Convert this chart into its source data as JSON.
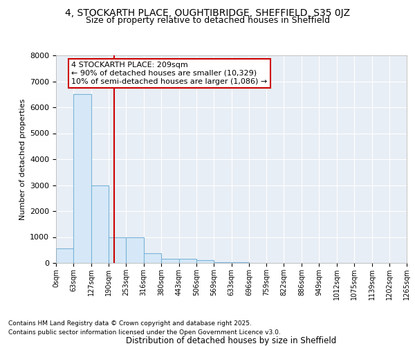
{
  "title": "4, STOCKARTH PLACE, OUGHTIBRIDGE, SHEFFIELD, S35 0JZ",
  "subtitle": "Size of property relative to detached houses in Sheffield",
  "xlabel": "Distribution of detached houses by size in Sheffield",
  "ylabel": "Number of detached properties",
  "bin_edges": [
    0,
    63,
    127,
    190,
    253,
    316,
    380,
    443,
    506,
    569,
    633,
    696,
    759,
    822,
    886,
    949,
    1012,
    1075,
    1139,
    1202,
    1265
  ],
  "bin_labels": [
    "0sqm",
    "63sqm",
    "127sqm",
    "190sqm",
    "253sqm",
    "316sqm",
    "380sqm",
    "443sqm",
    "506sqm",
    "569sqm",
    "633sqm",
    "696sqm",
    "759sqm",
    "822sqm",
    "886sqm",
    "949sqm",
    "1012sqm",
    "1075sqm",
    "1139sqm",
    "1202sqm",
    "1265sqm"
  ],
  "bar_values": [
    550,
    6500,
    3000,
    1000,
    1000,
    370,
    170,
    150,
    100,
    30,
    15,
    10,
    8,
    5,
    3,
    2,
    2,
    1,
    1,
    1
  ],
  "bar_color": "#d6e8f7",
  "bar_edge_color": "#7ab4d8",
  "vline_x": 209,
  "vline_color": "#cc0000",
  "annotation_line1": "4 STOCKARTH PLACE: 209sqm",
  "annotation_line2": "← 90% of detached houses are smaller (10,329)",
  "annotation_line3": "10% of semi-detached houses are larger (1,086) →",
  "annotation_box_edgecolor": "#cc0000",
  "ylim_max": 8000,
  "yticks": [
    0,
    1000,
    2000,
    3000,
    4000,
    5000,
    6000,
    7000,
    8000
  ],
  "plot_bg_color": "#e8eef5",
  "grid_color": "#ffffff",
  "fig_bg_color": "#ffffff",
  "footer_line1": "Contains HM Land Registry data © Crown copyright and database right 2025.",
  "footer_line2": "Contains public sector information licensed under the Open Government Licence v3.0."
}
